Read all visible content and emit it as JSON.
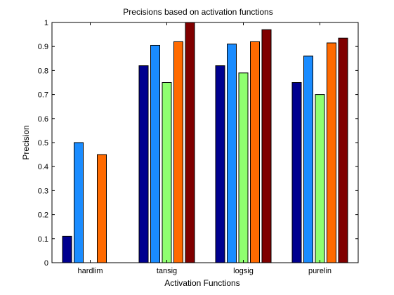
{
  "chart_data": {
    "type": "bar",
    "title": "Precisions based on activation functions",
    "xlabel": "Activation Functions",
    "ylabel": "Precision",
    "categories": [
      "hardlim",
      "tansig",
      "logsig",
      "purelin"
    ],
    "ylim": [
      0,
      1
    ],
    "yticks": [
      "0",
      "0.1",
      "0.2",
      "0.3",
      "0.4",
      "0.5",
      "0.6",
      "0.7",
      "0.8",
      "0.9",
      "1"
    ],
    "grid": false,
    "series": [
      {
        "color": "#00008f",
        "values": [
          0.11,
          0.82,
          0.82,
          0.75
        ]
      },
      {
        "color": "#1a8cff",
        "values": [
          0.5,
          0.905,
          0.91,
          0.86
        ]
      },
      {
        "color": "#8fff70",
        "values": [
          0,
          0.75,
          0.79,
          0.7
        ]
      },
      {
        "color": "#ff6a00",
        "values": [
          0.45,
          0.92,
          0.92,
          0.915
        ]
      },
      {
        "color": "#800000",
        "values": [
          0,
          1.0,
          0.97,
          0.935
        ]
      }
    ]
  }
}
